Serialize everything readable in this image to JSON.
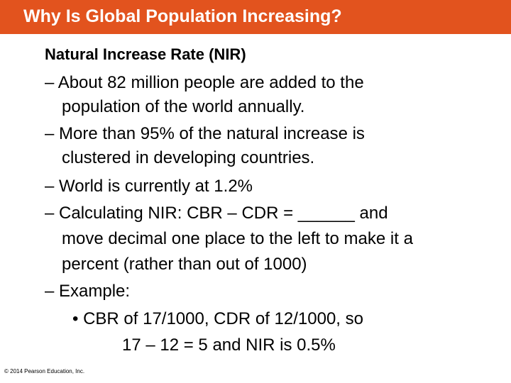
{
  "slide": {
    "title": "Why Is Global Population Increasing?",
    "heading": "Natural Increase Rate (NIR)",
    "bullets": [
      {
        "lines": [
          "– About 82 million people are added to the",
          "population of the world annually."
        ]
      },
      {
        "lines": [
          "– More than 95% of the natural increase is",
          "clustered in developing countries."
        ]
      },
      {
        "lines": [
          "– World is currently at 1.2%"
        ]
      },
      {
        "lines": [
          "– Calculating NIR: CBR – CDR = ______ and",
          "move decimal one place to the left to make it a",
          "percent (rather than out of 1000)"
        ]
      },
      {
        "lines": [
          "– Example:"
        ]
      }
    ],
    "sub_bullet": {
      "lines": [
        "• CBR of 17/1000, CDR of 12/1000, so",
        "17 – 12 = 5 and NIR is 0.5%"
      ]
    },
    "footer": "© 2014 Pearson Education, Inc.",
    "colors": {
      "title_bar": "#e2531e",
      "title_text": "#ffffff",
      "body_text": "#000000",
      "background": "#ffffff"
    }
  }
}
